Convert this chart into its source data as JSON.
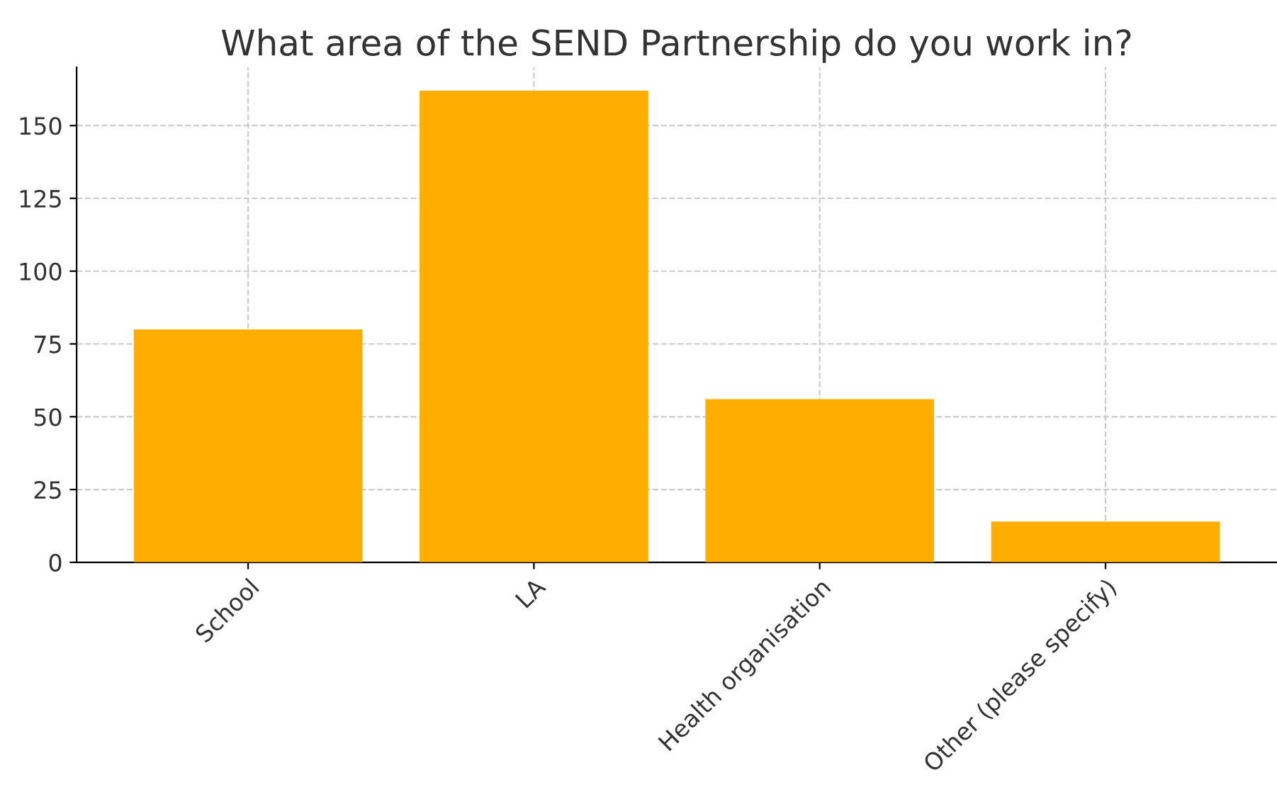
{
  "chart_data": {
    "type": "bar",
    "title": "What area of the SEND Partnership do you work in?",
    "categories": [
      "School",
      "LA",
      "Health organisation",
      "Other (please specify)"
    ],
    "values": [
      80,
      162,
      56,
      14
    ],
    "color": "#ffae00",
    "ylim": [
      0,
      170
    ],
    "yticks": [
      0,
      25,
      50,
      75,
      100,
      125,
      150
    ],
    "grid": true
  }
}
